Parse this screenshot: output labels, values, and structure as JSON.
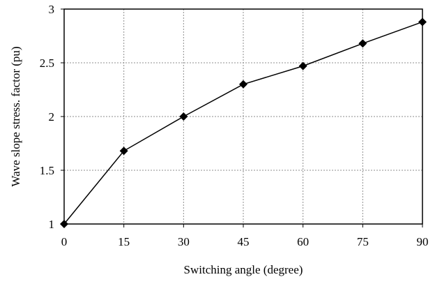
{
  "chart_data": {
    "type": "line",
    "title": "",
    "xlabel": "Switching angle (degree)",
    "ylabel": "Wave slope stress. factor (pu)",
    "xlim": [
      0,
      90
    ],
    "ylim": [
      1,
      3
    ],
    "xticks": [
      0,
      15,
      30,
      45,
      60,
      75,
      90
    ],
    "yticks": [
      1,
      1.5,
      2,
      2.5,
      3
    ],
    "xtick_labels": [
      "0",
      "15",
      "30",
      "45",
      "60",
      "75",
      "90"
    ],
    "ytick_labels": [
      "1",
      "1.5",
      "2",
      "2.5",
      "3"
    ],
    "grid": true,
    "grid_style": "dotted",
    "marker": "diamond",
    "colors": {
      "line": "#000000",
      "marker": "#000000",
      "grid": "#8c8c8c",
      "frame": "#000000"
    },
    "series": [
      {
        "x": [
          0,
          15,
          30,
          45,
          60,
          75,
          90
        ],
        "y": [
          1.0,
          1.68,
          2.0,
          2.3,
          2.47,
          2.68,
          2.88
        ]
      }
    ]
  }
}
